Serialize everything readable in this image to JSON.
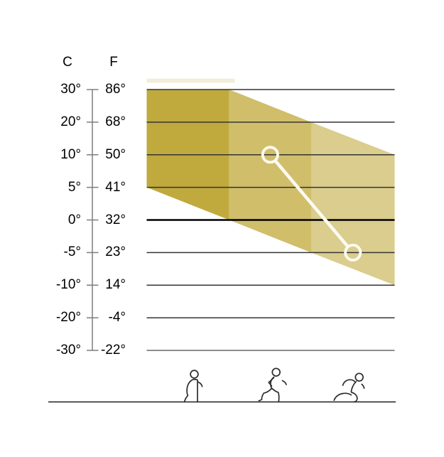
{
  "chart_data": {
    "type": "area",
    "title": "",
    "description": "Temperature comfort bands for walking, jogging and running; highlighted range from 10°C down to -5°C",
    "y_axis": {
      "c_header": "C",
      "f_header": "F",
      "rows": [
        {
          "c": "30°",
          "f": "86°",
          "c_value": 30
        },
        {
          "c": "20°",
          "f": "68°",
          "c_value": 20
        },
        {
          "c": "10°",
          "f": "50°",
          "c_value": 10
        },
        {
          "c": "5°",
          "f": "41°",
          "c_value": 5
        },
        {
          "c": "0°",
          "f": "32°",
          "c_value": 0,
          "bold": true
        },
        {
          "c": "-5°",
          "f": "23°",
          "c_value": -5
        },
        {
          "c": "-10°",
          "f": "14°",
          "c_value": -10
        },
        {
          "c": "-20°",
          "f": "-4°",
          "c_value": -20
        },
        {
          "c": "-30°",
          "f": "-22°",
          "c_value": -30,
          "muted": true
        }
      ]
    },
    "zones": [
      {
        "name": "walking",
        "color": "#c0aa3e",
        "top_c": [
          30,
          30
        ],
        "bottom_c": [
          5,
          0
        ]
      },
      {
        "name": "jogging",
        "color": "#d0be6b",
        "top_c": [
          30,
          20
        ],
        "bottom_c": [
          0,
          -5
        ]
      },
      {
        "name": "running",
        "color": "#dacd8d",
        "top_c": [
          20,
          10
        ],
        "bottom_c": [
          -5,
          -10
        ]
      }
    ],
    "markers": {
      "color": "#fdfaf1",
      "points": [
        {
          "zone": "jogging",
          "c_value": 10
        },
        {
          "zone": "running",
          "c_value": -5
        }
      ]
    },
    "icons": [
      "walking-icon",
      "jogging-icon",
      "running-icon"
    ]
  }
}
